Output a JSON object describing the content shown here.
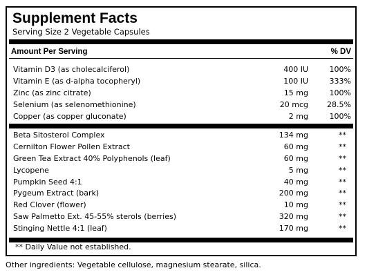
{
  "panel": {
    "title": "Supplement Facts",
    "serving_size": "Serving Size 2 Vegetable Capsules",
    "amount_per_serving": "Amount Per Serving",
    "dv_header": "% DV"
  },
  "vitamins_minerals": [
    {
      "name": "Vitamin D3 (as cholecalciferol)",
      "amount": "400 IU",
      "dv": "100%"
    },
    {
      "name": "Vitamin E (as d-alpha tocopheryl)",
      "amount": "100 IU",
      "dv": "333%"
    },
    {
      "name": "Zinc (as zinc citrate)",
      "amount": "15 mg",
      "dv": "100%"
    },
    {
      "name": "Selenium (as selenomethionine)",
      "amount": "20 mcg",
      "dv": "28.5%"
    },
    {
      "name": "Copper (as copper gluconate)",
      "amount": "2 mg",
      "dv": "100%"
    }
  ],
  "other_actives": [
    {
      "name": "Beta Sitosterol Complex",
      "amount": "134 mg",
      "dv": "**"
    },
    {
      "name": "Cernilton Flower Pollen Extract",
      "amount": "60 mg",
      "dv": "**"
    },
    {
      "name": "Green Tea Extract 40% Polyphenols (leaf)",
      "amount": "60 mg",
      "dv": "**"
    },
    {
      "name": "Lycopene",
      "amount": "5 mg",
      "dv": "**"
    },
    {
      "name": "Pumpkin Seed 4:1",
      "amount": "40 mg",
      "dv": "**"
    },
    {
      "name": "Pygeum Extract (bark)",
      "amount": "200 mg",
      "dv": "**"
    },
    {
      "name": "Red Clover (flower)",
      "amount": "10 mg",
      "dv": "**"
    },
    {
      "name": "Saw Palmetto Ext. 45-55% sterols (berries)",
      "amount": "320 mg",
      "dv": "**"
    },
    {
      "name": "Stinging Nettle 4:1 (leaf)",
      "amount": "170 mg",
      "dv": "**"
    }
  ],
  "footnote": "** Daily Value not established.",
  "other_ingredients": "Other ingredients: Vegetable cellulose, magnesium stearate, silica."
}
